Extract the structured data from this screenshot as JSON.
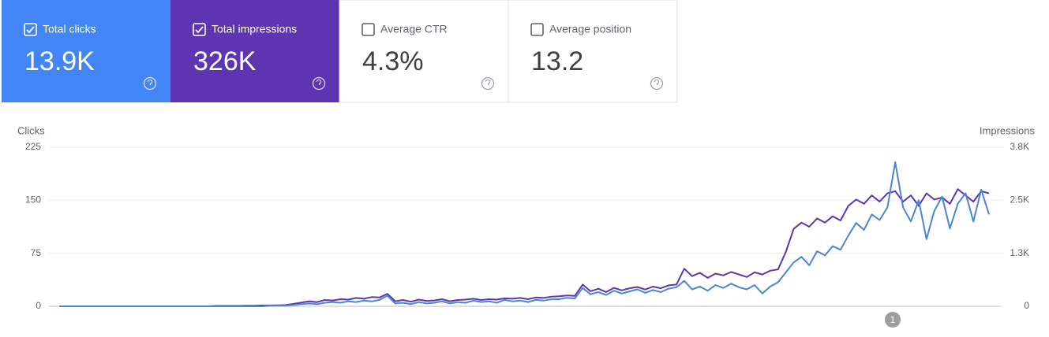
{
  "cards": [
    {
      "label": "Total clicks",
      "value": "13.9K",
      "checked": true,
      "color": "#4285f4"
    },
    {
      "label": "Total impressions",
      "value": "326K",
      "checked": true,
      "color": "#5e35b1"
    },
    {
      "label": "Average CTR",
      "value": "4.3%",
      "checked": false
    },
    {
      "label": "Average position",
      "value": "13.2",
      "checked": false
    }
  ],
  "chart_data": {
    "type": "line",
    "ylabel": "Clicks",
    "y2label": "Impressions",
    "ylim": [
      0,
      225
    ],
    "yticks": [
      0,
      75,
      150,
      225
    ],
    "y2lim": [
      0,
      3800
    ],
    "y2ticks": [
      0,
      {
        "value": 1267,
        "label": "1.3K"
      },
      {
        "value": 2533,
        "label": "2.5K"
      },
      {
        "value": 3800,
        "label": "3.8K"
      }
    ],
    "grid": true,
    "annotation": "1",
    "series": [
      {
        "color": "#4a86d4",
        "values": [
          0,
          0,
          0,
          0,
          0,
          0,
          0,
          0,
          0,
          0,
          0,
          0,
          0,
          0,
          0,
          0,
          0,
          0,
          0,
          0,
          0,
          0,
          0,
          0,
          0,
          0,
          0,
          1,
          1,
          1,
          2,
          3,
          4,
          3,
          5,
          6,
          5,
          7,
          6,
          8,
          7,
          9,
          15,
          4,
          5,
          3,
          6,
          4,
          5,
          7,
          4,
          6,
          5,
          8,
          6,
          7,
          5,
          9,
          7,
          8,
          6,
          9,
          8,
          10,
          10,
          12,
          11,
          26,
          17,
          20,
          16,
          22,
          18,
          21,
          24,
          19,
          23,
          20,
          25,
          27,
          36,
          24,
          28,
          22,
          30,
          26,
          32,
          27,
          24,
          30,
          18,
          28,
          34,
          48,
          62,
          70,
          58,
          78,
          72,
          85,
          80,
          100,
          118,
          108,
          130,
          122,
          140,
          204,
          140,
          120,
          150,
          95,
          135,
          155,
          110,
          145,
          160,
          120,
          165,
          130
        ]
      },
      {
        "color": "#5e35b1",
        "axis": "y2",
        "values": [
          0,
          0,
          0,
          0,
          0,
          0,
          0,
          0,
          0,
          0,
          0,
          0,
          0,
          0,
          0,
          0,
          0,
          0,
          0,
          0,
          10,
          10,
          10,
          10,
          15,
          15,
          20,
          20,
          25,
          30,
          60,
          90,
          120,
          100,
          150,
          140,
          170,
          160,
          200,
          180,
          220,
          210,
          300,
          120,
          150,
          110,
          160,
          130,
          140,
          170,
          120,
          150,
          160,
          180,
          150,
          170,
          160,
          190,
          180,
          200,
          170,
          210,
          200,
          230,
          240,
          260,
          250,
          520,
          360,
          420,
          340,
          440,
          380,
          430,
          460,
          400,
          470,
          430,
          500,
          520,
          900,
          720,
          800,
          680,
          780,
          740,
          820,
          760,
          700,
          810,
          760,
          850,
          880,
          1300,
          1850,
          2000,
          1900,
          2100,
          2000,
          2150,
          2050,
          2400,
          2550,
          2450,
          2650,
          2500,
          2700,
          2750,
          2500,
          2650,
          2400,
          2700,
          2550,
          2600,
          2450,
          2800,
          2650,
          2500,
          2750,
          2700
        ]
      }
    ]
  }
}
